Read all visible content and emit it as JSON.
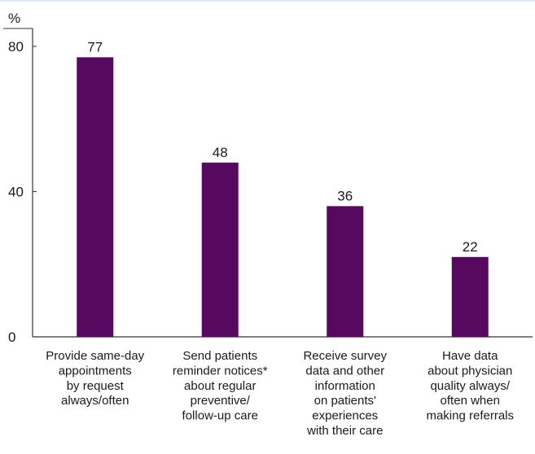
{
  "chart_data": {
    "type": "bar",
    "title": "",
    "xlabel": "",
    "ylabel": "%",
    "ylim": [
      0,
      80
    ],
    "yticks": [
      0,
      40,
      80
    ],
    "grid": false,
    "categories": [
      [
        "Provide same-day",
        "appointments",
        "by request",
        "always/often"
      ],
      [
        "Send patients",
        "reminder notices*",
        "about regular",
        "preventive/",
        "follow-up care"
      ],
      [
        "Receive survey",
        "data and other",
        "information",
        "on patients'",
        "experiences",
        "with their care"
      ],
      [
        "Have data",
        "about physician",
        "quality always/",
        "often when",
        "making referrals"
      ]
    ],
    "values": [
      77,
      48,
      36,
      22
    ]
  },
  "colors": {
    "bar": "#56095e",
    "axis": "#333333",
    "text": "#1a1a1a",
    "top_border": "#dce8f3"
  }
}
